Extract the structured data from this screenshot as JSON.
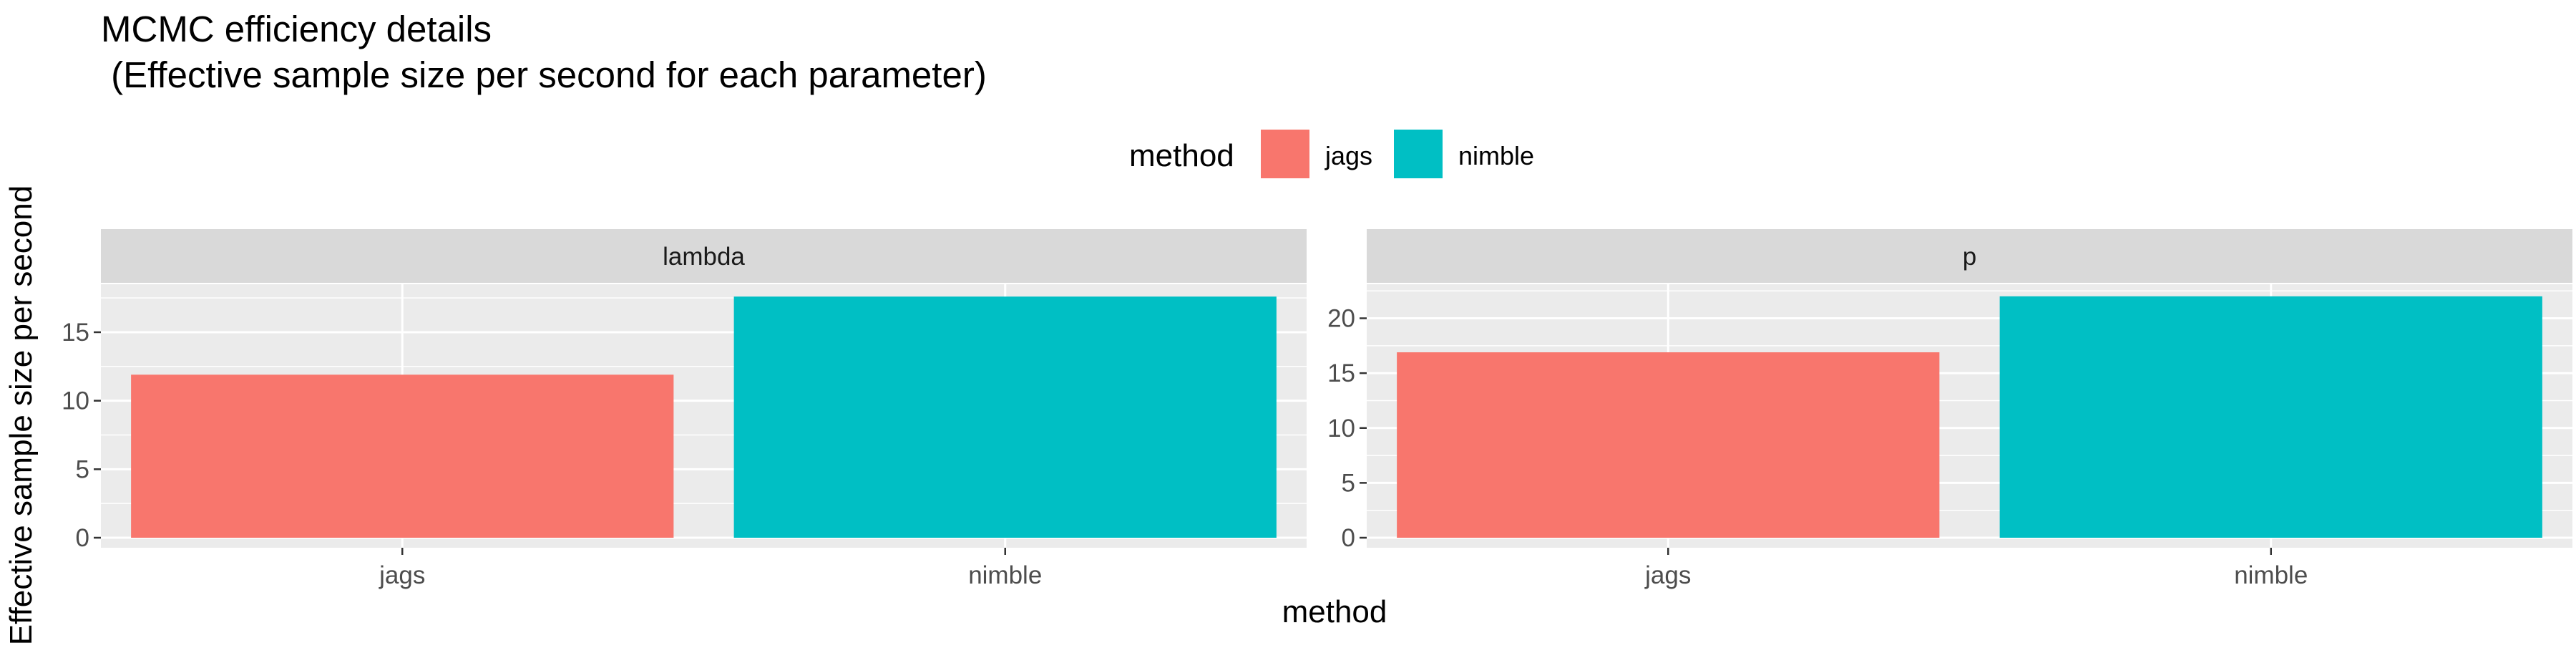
{
  "chart_data": {
    "type": "bar",
    "title": "MCMC efficiency details\n (Effective sample size per second for each parameter)",
    "title_lines": [
      "MCMC efficiency details",
      " (Effective sample size per second for each parameter)"
    ],
    "xlabel": "method",
    "ylabel": "Effective sample size per second",
    "legend": {
      "title": "method",
      "position": "top",
      "entries": [
        {
          "label": "jags",
          "color": "#F8766D"
        },
        {
          "label": "nimble",
          "color": "#00BFC4"
        }
      ]
    },
    "categories": [
      "jags",
      "nimble"
    ],
    "colors": {
      "jags": "#F8766D",
      "nimble": "#00BFC4",
      "panel": "#EBEBEB",
      "strip": "#D9D9D9",
      "grid": "#FFFFFF",
      "text": "#4D4D4D"
    },
    "grid": true,
    "facets": [
      {
        "strip": "lambda",
        "values": [
          11.9,
          17.6
        ],
        "yticks": [
          0,
          5,
          10,
          15
        ],
        "ylim": [
          0,
          18.5
        ]
      },
      {
        "strip": "p",
        "values": [
          16.9,
          22.0
        ],
        "yticks": [
          0,
          5,
          10,
          15,
          20
        ],
        "ylim": [
          0,
          23.1
        ]
      }
    ]
  }
}
